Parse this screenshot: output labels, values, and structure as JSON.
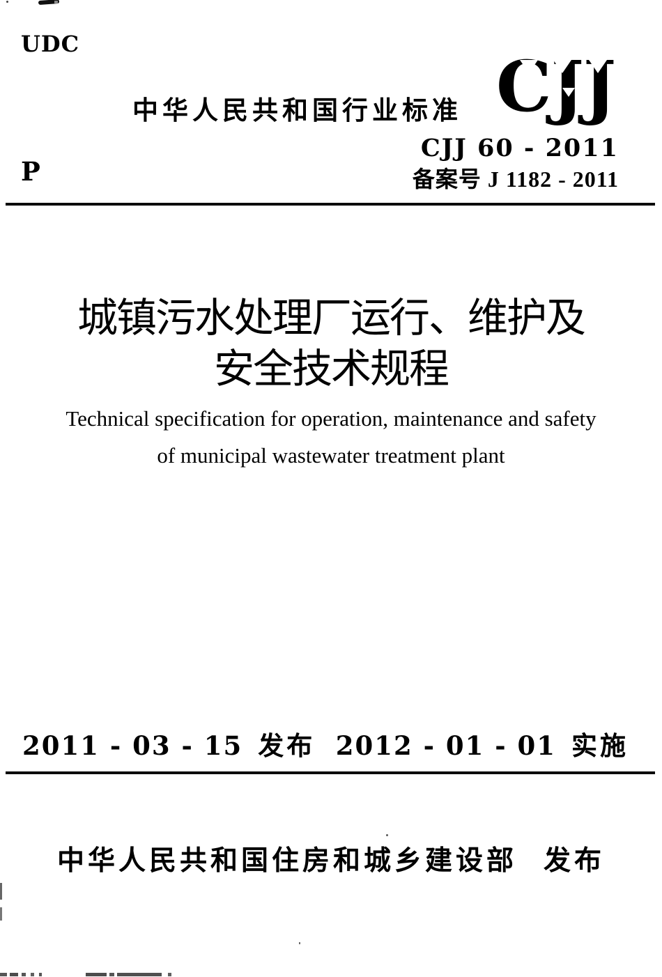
{
  "colors": {
    "ink": "#000000",
    "paper": "#ffffff"
  },
  "masthead": {
    "udc": "UDC",
    "class_code": "P",
    "title": "中华人民共和国行业标准",
    "logo": "CJJ",
    "standard_no": "CJJ 60 - 2011",
    "record_no": "备案号 J 1182 - 2011"
  },
  "title": {
    "cn_line1": "城镇污水处理厂运行、维护及",
    "cn_line2": "安全技术规程",
    "en_line1": "Technical specification for operation, maintenance and safety",
    "en_line2": "of municipal wastewater treatment plant"
  },
  "dates": {
    "issued": "2011 - 03 - 15",
    "issued_label": "发布",
    "effective": "2012 - 01 - 01",
    "effective_label": "实施"
  },
  "footer": {
    "publisher": "中华人民共和国住房和城乡建设部",
    "publish_label": "发布"
  }
}
